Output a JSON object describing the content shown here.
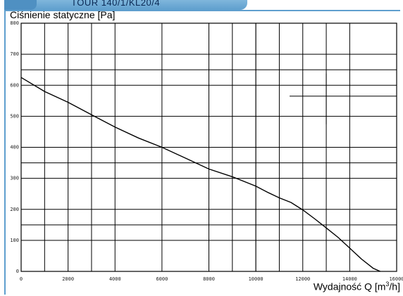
{
  "header": {
    "title": "TOUR 140/1/KL20/4"
  },
  "chart_data": {
    "type": "line",
    "title": "Ciśnienie statyczne [Pa]",
    "xlabel": "Wydajność Q",
    "xlabel_unit_pre": "[m",
    "xlabel_unit_sup": "3",
    "xlabel_unit_post": "/h]",
    "ylabel": "",
    "xlim": [
      0,
      16000
    ],
    "ylim": [
      0,
      800
    ],
    "xticks": [
      0,
      2000,
      4000,
      6000,
      8000,
      10000,
      12000,
      14000,
      16000
    ],
    "yticks": [
      0,
      100,
      200,
      300,
      400,
      500,
      600,
      700,
      800
    ],
    "xtick_labels": [
      "0",
      "2000",
      "4000",
      "6000",
      "8000",
      "10000",
      "12000",
      "14000",
      "16000"
    ],
    "ytick_labels": [
      "0",
      "100",
      "200",
      "300",
      "400",
      "500",
      "600",
      "700",
      "800"
    ],
    "grid_x_extra": [
      1000,
      3000,
      9000,
      10000,
      11000,
      13000
    ],
    "grid_y_extra": [
      150,
      350,
      650
    ],
    "grid": true,
    "series": [
      {
        "x": [
          0,
          1000,
          2000,
          3000,
          4000,
          5000,
          6000,
          7000,
          8000,
          9000,
          10000,
          10500,
          11000,
          11500,
          12000,
          12500,
          13000,
          13500,
          14000,
          14500,
          15000,
          15300
        ],
        "y": [
          625,
          580,
          545,
          505,
          465,
          430,
          400,
          365,
          330,
          305,
          275,
          255,
          237,
          222,
          198,
          170,
          140,
          110,
          75,
          40,
          10,
          0
        ]
      }
    ],
    "operating_point": {
      "x": 13000,
      "y": 565
    }
  }
}
